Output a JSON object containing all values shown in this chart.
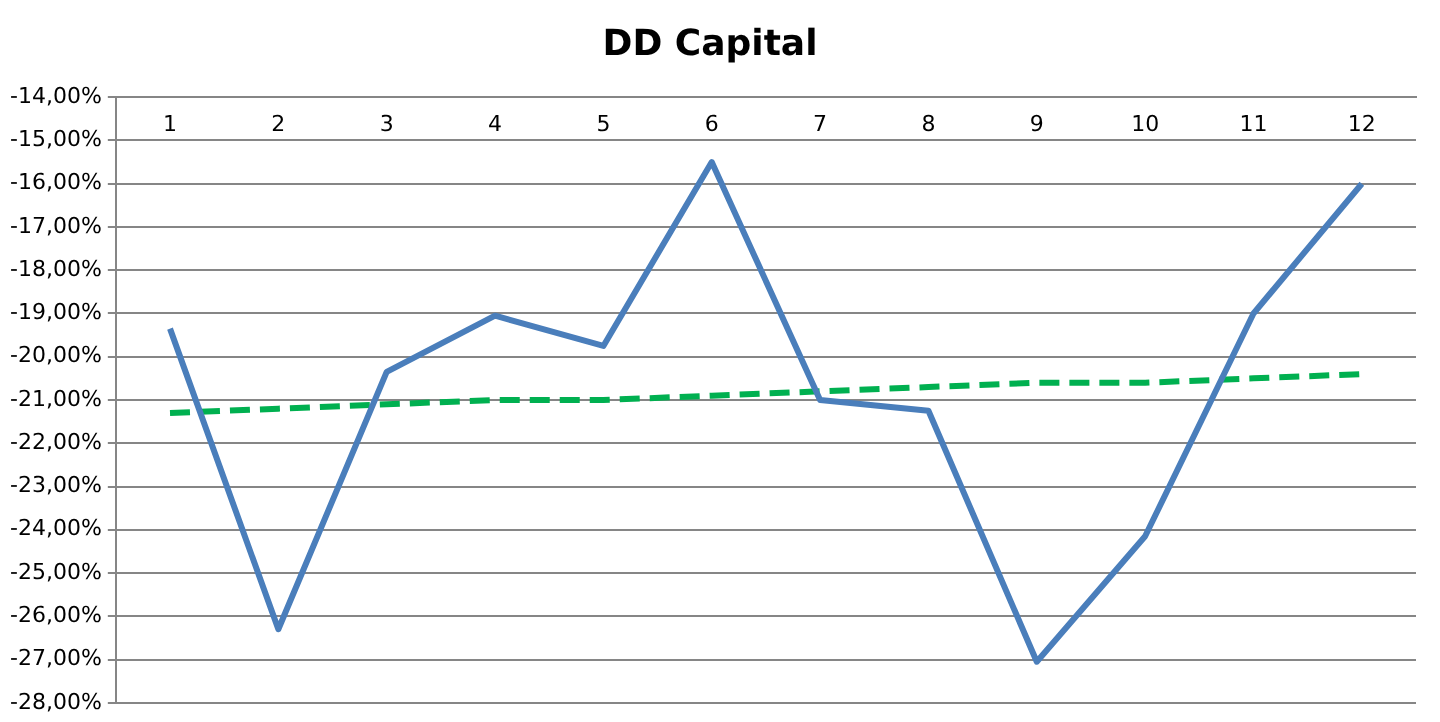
{
  "chart_data": {
    "type": "line",
    "title": "DD Capital",
    "categories": [
      "1",
      "2",
      "3",
      "4",
      "5",
      "6",
      "7",
      "8",
      "9",
      "10",
      "11",
      "12"
    ],
    "series": [
      {
        "color": "#4a7ebb",
        "line_style": "solid",
        "values": [
          -19.35,
          -26.3,
          -20.35,
          -19.05,
          -19.75,
          -15.5,
          -21.0,
          -21.25,
          -27.05,
          -24.15,
          -19.0,
          -16.0
        ]
      },
      {
        "color": "#00b050",
        "line_style": "dashed",
        "values": [
          -21.3,
          -21.2,
          -21.1,
          -21.0,
          -21.0,
          -20.9,
          -20.8,
          -20.7,
          -20.6,
          -20.6,
          -20.5,
          -20.4
        ]
      }
    ],
    "ylim": [
      -28,
      -14
    ],
    "yticks": [
      {
        "value": -14,
        "label": "-14,00%"
      },
      {
        "value": -15,
        "label": "-15,00%"
      },
      {
        "value": -16,
        "label": "-16,00%"
      },
      {
        "value": -17,
        "label": "-17,00%"
      },
      {
        "value": -18,
        "label": "-18,00%"
      },
      {
        "value": -19,
        "label": "-19,00%"
      },
      {
        "value": -20,
        "label": "-20,00%"
      },
      {
        "value": -21,
        "label": "-21,00%"
      },
      {
        "value": -22,
        "label": "-22,00%"
      },
      {
        "value": -23,
        "label": "-23,00%"
      },
      {
        "value": -24,
        "label": "-24,00%"
      },
      {
        "value": -25,
        "label": "-25,00%"
      },
      {
        "value": -26,
        "label": "-26,00%"
      },
      {
        "value": -27,
        "label": "-27,00%"
      },
      {
        "value": -28,
        "label": "-28,00%"
      }
    ],
    "grid": "y",
    "legend": false,
    "marker": "none"
  }
}
